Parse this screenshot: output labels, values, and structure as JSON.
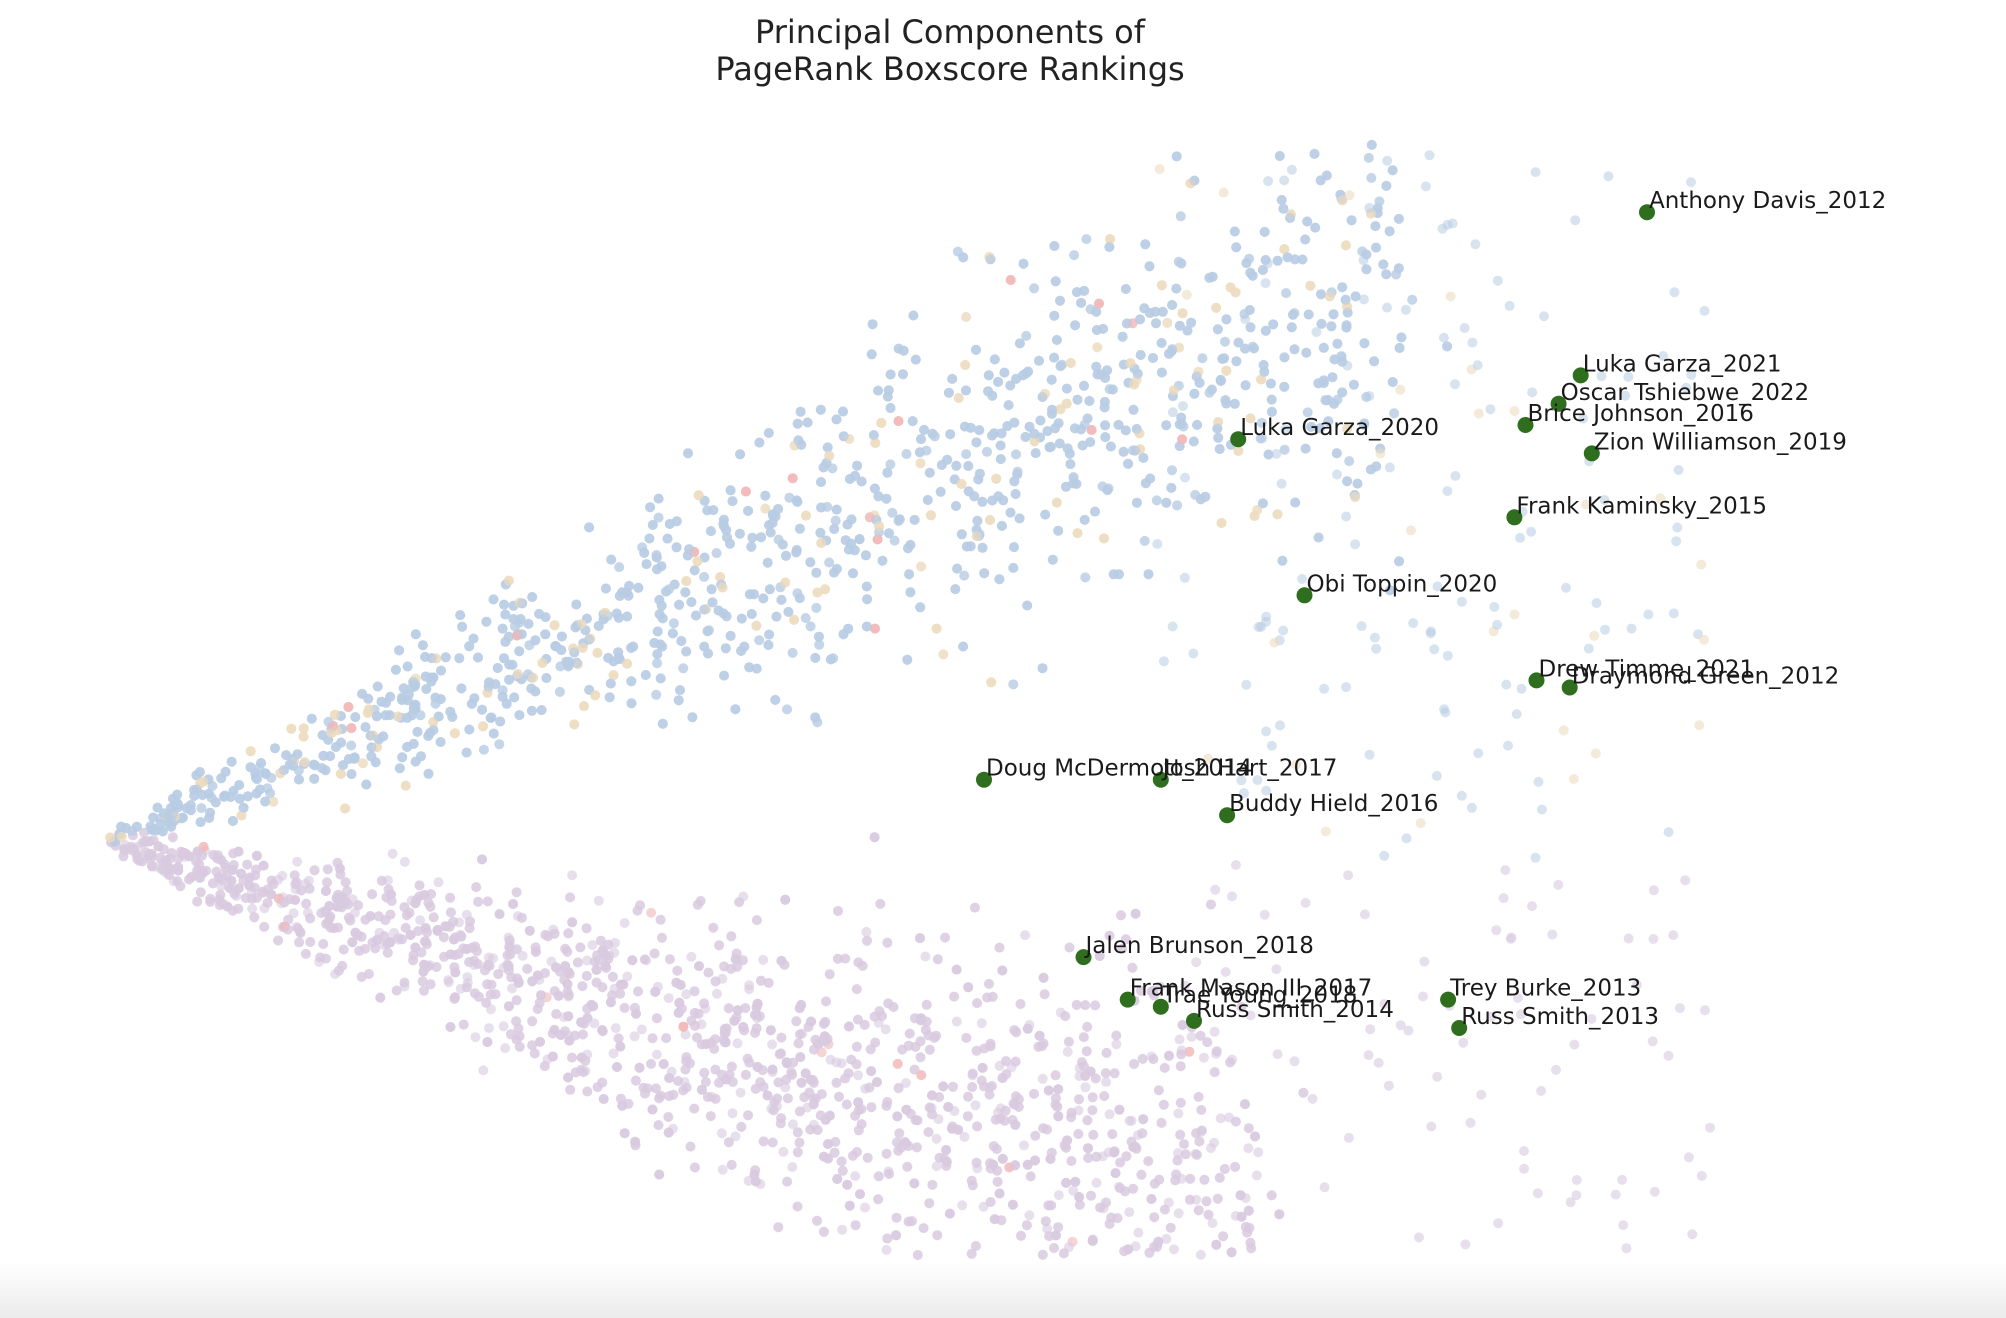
{
  "chart_data": {
    "type": "scatter",
    "title_lines": [
      "Principal Components of",
      "PageRank Boxscore Rankings"
    ],
    "xlabel": "",
    "ylabel": "",
    "axes_visible": false,
    "grid": false,
    "xlim": [
      -0.5,
      15.5
    ],
    "ylim": [
      -6.5,
      9.5
    ],
    "background_clusters": [
      {
        "color": "#b8cce4",
        "opacity": 0.55
      },
      {
        "color": "#ecdcc0",
        "opacity": 0.6
      },
      {
        "color": "#d9c9e0",
        "opacity": 0.6
      },
      {
        "color": "#f2b8b8",
        "opacity": 0.6
      }
    ],
    "highlight_color": "#2e6e1e",
    "highlighted_points": [
      {
        "label": "Anthony Davis_2012",
        "x": 13.5,
        "y": 8.2
      },
      {
        "label": "Luka Garza_2021",
        "x": 12.9,
        "y": 5.9
      },
      {
        "label": "Oscar Tshiebwe_2022",
        "x": 12.7,
        "y": 5.5
      },
      {
        "label": "Brice Johnson_2016",
        "x": 12.4,
        "y": 5.2
      },
      {
        "label": "Zion Williamson_2019",
        "x": 13.0,
        "y": 4.8
      },
      {
        "label": "Luka Garza_2020",
        "x": 9.8,
        "y": 5.0
      },
      {
        "label": "Frank Kaminsky_2015",
        "x": 12.3,
        "y": 3.9
      },
      {
        "label": "Obi Toppin_2020",
        "x": 10.4,
        "y": 2.8
      },
      {
        "label": "Drew Timme_2021",
        "x": 12.5,
        "y": 1.6
      },
      {
        "label": "Draymond Green_2012",
        "x": 12.8,
        "y": 1.5
      },
      {
        "label": "Doug McDermott_2014",
        "x": 7.5,
        "y": 0.2
      },
      {
        "label": "Josh Hart_2017",
        "x": 9.1,
        "y": 0.2
      },
      {
        "label": "Buddy Hield_2016",
        "x": 9.7,
        "y": -0.3
      },
      {
        "label": "Jalen Brunson_2018",
        "x": 8.4,
        "y": -2.3
      },
      {
        "label": "Frank Mason III_2017",
        "x": 8.8,
        "y": -2.9
      },
      {
        "label": "Trae Young_2018",
        "x": 9.1,
        "y": -3.0
      },
      {
        "label": "Russ Smith_2014",
        "x": 9.4,
        "y": -3.2
      },
      {
        "label": "Trey Burke_2013",
        "x": 11.7,
        "y": -2.9
      },
      {
        "label": "Russ Smith_2013",
        "x": 11.8,
        "y": -3.3
      }
    ]
  }
}
